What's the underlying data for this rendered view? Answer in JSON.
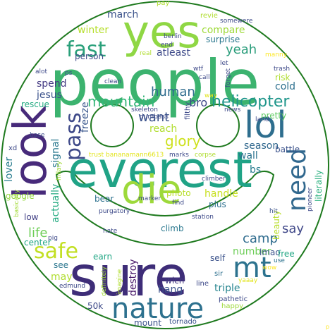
{
  "cloud": {
    "shape": "smiley-face",
    "outline_color": "#1f7a1f",
    "palette": [
      "#440154",
      "#3b528b",
      "#21918c",
      "#5ec962",
      "#fde725"
    ],
    "words": [
      {
        "text": "people",
        "color": "#3cb36f"
      },
      {
        "text": "everest",
        "color": "#20a386"
      },
      {
        "text": "sure",
        "color": "#3e2d78"
      },
      {
        "text": "yes",
        "color": "#8fd744"
      },
      {
        "text": "look",
        "color": "#472a7a"
      },
      {
        "text": "die",
        "color": "#9dd93b"
      },
      {
        "text": "lol",
        "color": "#2e6e8e"
      },
      {
        "text": "nature",
        "color": "#2d718e"
      },
      {
        "text": "need",
        "color": "#31688e"
      },
      {
        "text": "mt",
        "color": "#2c728e"
      },
      {
        "text": "safe",
        "color": "#c2df23"
      },
      {
        "text": "fast",
        "color": "#2aa07a"
      },
      {
        "text": "pass",
        "color": "#3e4989"
      },
      {
        "text": "helicopter",
        "color": "#1f968b"
      },
      {
        "text": "mountain",
        "color": "#35b779"
      },
      {
        "text": "glory",
        "color": "#cde11d"
      },
      {
        "text": "human",
        "color": "#2f6c8e"
      },
      {
        "text": "yeah",
        "color": "#2a9d7b"
      },
      {
        "text": "want",
        "color": "#3b528b"
      },
      {
        "text": "camp",
        "color": "#2f6c8e"
      },
      {
        "text": "say",
        "color": "#3f4788"
      },
      {
        "text": "life",
        "color": "#6ece58"
      },
      {
        "text": "compare",
        "color": "#9fda3a"
      },
      {
        "text": "atleast",
        "color": "#3e4a89"
      },
      {
        "text": "winter",
        "color": "#b5de2b"
      },
      {
        "text": "march",
        "color": "#3b528b"
      },
      {
        "text": "season",
        "color": "#31688e"
      },
      {
        "text": "cold",
        "color": "#2d708e"
      },
      {
        "text": "reach",
        "color": "#b0dd2f"
      },
      {
        "text": "bro",
        "color": "#3e4989"
      },
      {
        "text": "destroy",
        "color": "#48186a"
      },
      {
        "text": "triple",
        "color": "#25848e"
      },
      {
        "text": "number",
        "color": "#6ece58"
      },
      {
        "text": "handle",
        "color": "#c8e020"
      },
      {
        "text": "jesus",
        "color": "#3b528b"
      },
      {
        "text": "spend",
        "color": "#443a83"
      },
      {
        "text": "rescue",
        "color": "#25ab82"
      },
      {
        "text": "freeze",
        "color": "#39568c"
      },
      {
        "text": "signal",
        "color": "#2a788e"
      },
      {
        "text": "actually",
        "color": "#25ab82"
      },
      {
        "text": "lover",
        "color": "#287c8e"
      },
      {
        "text": "google",
        "color": "#95d840"
      },
      {
        "text": "literally",
        "color": "#2ab07f"
      },
      {
        "text": "beauty",
        "color": "#b8de29"
      },
      {
        "text": "wall",
        "color": "#2c738e"
      },
      {
        "text": "battle",
        "color": "#3b528b"
      },
      {
        "text": "pretty",
        "color": "#5ec962"
      },
      {
        "text": "bs",
        "color": "#287d8e"
      },
      {
        "text": "bear",
        "color": "#2d718e"
      },
      {
        "text": "plus",
        "color": "#2d718e"
      },
      {
        "text": "photo",
        "color": "#b8de29"
      },
      {
        "text": "may",
        "color": "#b0dd2f"
      },
      {
        "text": "see",
        "color": "#2a768e"
      },
      {
        "text": "earn",
        "color": "#22a785"
      },
      {
        "text": "center",
        "color": "#22a785"
      },
      {
        "text": "low",
        "color": "#424086"
      },
      {
        "text": "hang",
        "color": "#3b528b"
      },
      {
        "text": "wich",
        "color": "#443a83"
      },
      {
        "text": "climb",
        "color": "#2a788e"
      },
      {
        "text": "lmao",
        "color": "#3b528b"
      },
      {
        "text": "self",
        "color": "#3b528b"
      },
      {
        "text": "free",
        "color": "#22a785"
      },
      {
        "text": "50k",
        "color": "#3e4a89"
      },
      {
        "text": "mount",
        "color": "#3b528b"
      },
      {
        "text": "tornado",
        "color": "#3b528b"
      },
      {
        "text": "pathetic",
        "color": "#3e4a89"
      },
      {
        "text": "happy",
        "color": "#9dd93b"
      },
      {
        "text": "sir",
        "color": "#2d708e"
      },
      {
        "text": "line",
        "color": "#3e4a89"
      },
      {
        "text": "yaaay",
        "color": "#e2e418"
      },
      {
        "text": "wow",
        "color": "#fde725"
      },
      {
        "text": "use",
        "color": "#2c728e"
      },
      {
        "text": "pioneer",
        "color": "#3e4a89"
      },
      {
        "text": "hit",
        "color": "#3b528b"
      },
      {
        "text": "imagine",
        "color": "#b0dd2f"
      },
      {
        "text": "definitely",
        "color": "#a2da37"
      },
      {
        "text": "edmund",
        "color": "#3e4a89"
      },
      {
        "text": "basically",
        "color": "#a2da37"
      },
      {
        "text": "pig",
        "color": "#3e4a89"
      },
      {
        "text": "hillary",
        "color": "#a2da37"
      },
      {
        "text": "xd",
        "color": "#3e4a89"
      },
      {
        "text": "base",
        "color": "#3e4a89"
      },
      {
        "text": "purgatory",
        "color": "#3e4a89"
      },
      {
        "text": "hate",
        "color": "#3e4a89"
      },
      {
        "text": "marker",
        "color": "#3e4a89"
      },
      {
        "text": "find",
        "color": "#3e4a89"
      },
      {
        "text": "climber",
        "color": "#3e4a89"
      },
      {
        "text": "station",
        "color": "#3e4a89"
      },
      {
        "text": "trust bananamann6613",
        "color": "#e2e418"
      },
      {
        "text": "marks",
        "color": "#3e4a89"
      },
      {
        "text": "corpse",
        "color": "#b0dd2f"
      },
      {
        "text": "skeleton",
        "color": "#3e4a89"
      },
      {
        "text": "dumbass",
        "color": "#3e4a89"
      },
      {
        "text": "filthy",
        "color": "#3e4a89"
      },
      {
        "text": "clean",
        "color": "#3e4a89"
      },
      {
        "text": "land",
        "color": "#3e4a89"
      },
      {
        "text": "news",
        "color": "#3e4a89"
      },
      {
        "text": "way",
        "color": "#e2e418"
      },
      {
        "text": "forget",
        "color": "#3e4a89"
      },
      {
        "text": "wtf",
        "color": "#3e4a89"
      },
      {
        "text": "call",
        "color": "#3e4a89"
      },
      {
        "text": "let",
        "color": "#3e4a89"
      },
      {
        "text": "trash",
        "color": "#3e4a89"
      },
      {
        "text": "risk",
        "color": "#b0dd2f"
      },
      {
        "text": "manny",
        "color": "#fde725"
      },
      {
        "text": "person",
        "color": "#3e4a89"
      },
      {
        "text": "end",
        "color": "#3e4a89"
      },
      {
        "text": "real",
        "color": "#b0dd2f"
      },
      {
        "text": "berlin",
        "color": "#3e4a89"
      },
      {
        "text": "somewere",
        "color": "#3e4a89"
      },
      {
        "text": "surprise",
        "color": "#2a788e"
      },
      {
        "text": "revie",
        "color": "#b0dd2f"
      },
      {
        "text": "pay",
        "color": "#b0dd2f"
      },
      {
        "text": "alot",
        "color": "#3e4a89"
      },
      {
        "text": "ps",
        "color": "#3e4a89"
      },
      {
        "text": "p",
        "color": "#fde725"
      }
    ]
  }
}
